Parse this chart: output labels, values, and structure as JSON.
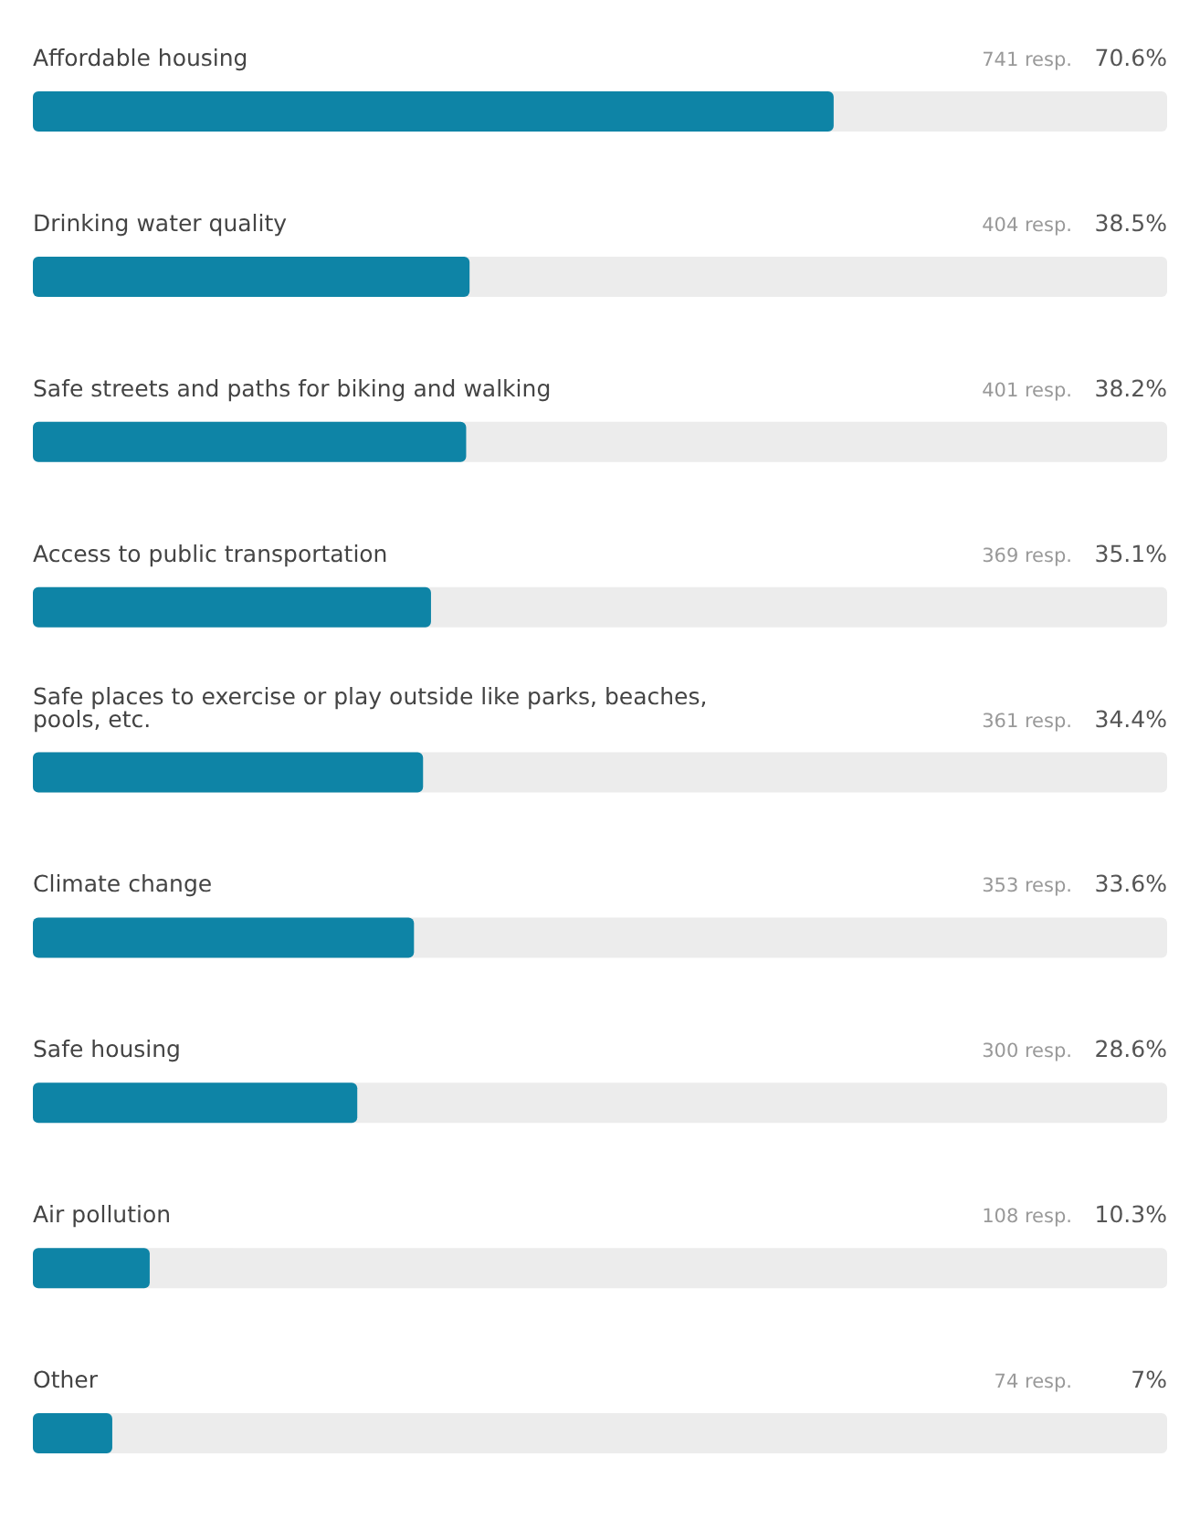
{
  "chart_data": {
    "type": "bar",
    "orientation": "horizontal",
    "categories": [
      "Affordable housing",
      "Drinking water quality",
      "Safe streets and paths for biking and walking",
      "Access to public transportation",
      "Safe places to exercise or play outside like parks, beaches, pools, etc.",
      "Climate change",
      "Safe housing",
      "Air pollution",
      "Other"
    ],
    "values": [
      70.6,
      38.5,
      38.2,
      35.1,
      34.4,
      33.6,
      28.6,
      10.3,
      7
    ],
    "value_labels": [
      "70.6%",
      "38.5%",
      "38.2%",
      "35.1%",
      "34.4%",
      "33.6%",
      "28.6%",
      "10.3%",
      "7%"
    ],
    "color": "#0e84a6",
    "xlim": [
      0,
      100
    ],
    "tick_labels": false,
    "annotations": [
      "741 resp.",
      "404 resp.",
      "401 resp.",
      "369 resp.",
      "361 resp.",
      "353 resp.",
      "300 resp.",
      "108 resp.",
      "74 resp."
    ]
  }
}
